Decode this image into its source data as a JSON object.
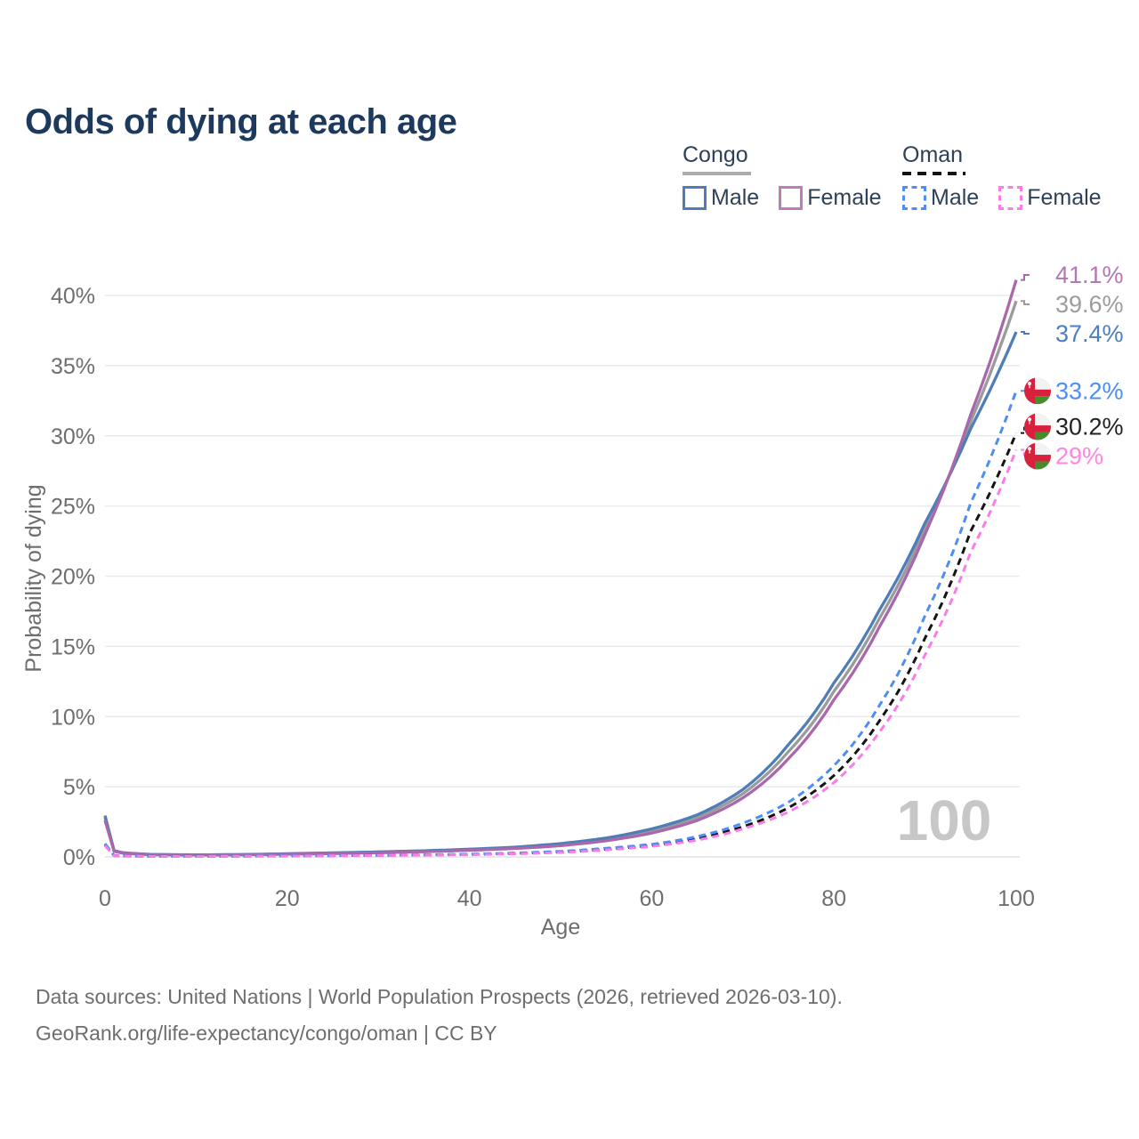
{
  "title": "Odds of dying at each age",
  "legend": {
    "groups": [
      {
        "country": "Congo",
        "line_style": "solid",
        "underline_color": "#ababab",
        "items": [
          {
            "label": "Male",
            "color": "#4f7db8"
          },
          {
            "label": "Female",
            "color": "#bd7cba"
          }
        ]
      },
      {
        "country": "Oman",
        "line_style": "dashed",
        "underline_color": "#141414",
        "items": [
          {
            "label": "Male",
            "color": "#4d8df5"
          },
          {
            "label": "Female",
            "color": "#fb7ce8"
          }
        ]
      }
    ]
  },
  "chart_data": {
    "type": "line",
    "title": "Odds of dying at each age",
    "xlabel": "Age",
    "ylabel": "Probability of dying",
    "x_ticks": [
      0,
      20,
      40,
      60,
      80,
      100
    ],
    "y_ticks": [
      0,
      5,
      10,
      15,
      20,
      25,
      30,
      35,
      40
    ],
    "y_tick_suffix": "%",
    "xlim": [
      0,
      100
    ],
    "ylim": [
      0,
      40
    ],
    "grid": true,
    "legend_position": "top-right",
    "watermark": "100",
    "ages": [
      0,
      1,
      2,
      5,
      10,
      15,
      20,
      25,
      30,
      35,
      40,
      45,
      50,
      55,
      60,
      65,
      70,
      75,
      80,
      85,
      90,
      95,
      100
    ],
    "series": [
      {
        "name": "Congo",
        "country": "Congo",
        "sex": "Both sexes",
        "style": "solid",
        "color": "#9b9b9b",
        "label_color": "#9c9c9c",
        "end_label": "39.6%",
        "flag": "congo-flag",
        "values": [
          2.8,
          0.43,
          0.28,
          0.17,
          0.14,
          0.16,
          0.21,
          0.27,
          0.33,
          0.41,
          0.51,
          0.65,
          0.88,
          1.25,
          1.85,
          2.8,
          4.5,
          7.5,
          11.8,
          17.0,
          23.4,
          31.0,
          39.6
        ]
      },
      {
        "name": "Congo Male",
        "country": "Congo",
        "sex": "Male",
        "style": "solid",
        "color": "#4f7db8",
        "label_color": "#4d7fc0",
        "end_label": "37.4%",
        "flag": "congo-flag",
        "values": [
          2.95,
          0.45,
          0.3,
          0.18,
          0.15,
          0.17,
          0.23,
          0.29,
          0.36,
          0.44,
          0.55,
          0.7,
          0.95,
          1.35,
          2.0,
          3.0,
          4.8,
          8.0,
          12.4,
          17.6,
          23.8,
          30.5,
          37.4
        ]
      },
      {
        "name": "Congo Female",
        "country": "Congo",
        "sex": "Female",
        "style": "solid",
        "color": "#a868ab",
        "label_color": "#b476b4",
        "end_label": "41.1%",
        "flag": "congo-flag",
        "values": [
          2.6,
          0.4,
          0.26,
          0.16,
          0.13,
          0.15,
          0.19,
          0.24,
          0.3,
          0.37,
          0.47,
          0.6,
          0.8,
          1.15,
          1.7,
          2.6,
          4.2,
          7.0,
          11.2,
          16.4,
          23.0,
          31.5,
          41.1
        ]
      },
      {
        "name": "Oman",
        "country": "Oman",
        "sex": "Both sexes",
        "style": "dashed",
        "color": "#141414",
        "label_color": "#222222",
        "end_label": "30.2%",
        "flag": "oman-flag",
        "values": [
          0.88,
          0.09,
          0.065,
          0.045,
          0.045,
          0.055,
          0.07,
          0.09,
          0.11,
          0.14,
          0.18,
          0.25,
          0.36,
          0.55,
          0.82,
          1.32,
          2.15,
          3.5,
          5.8,
          9.7,
          15.6,
          23.2,
          30.2
        ]
      },
      {
        "name": "Oman Male",
        "country": "Oman",
        "sex": "Male",
        "style": "dashed",
        "color": "#4d8df5",
        "label_color": "#4d8df5",
        "end_label": "33.2%",
        "flag": "oman-flag",
        "values": [
          0.95,
          0.1,
          0.07,
          0.05,
          0.05,
          0.06,
          0.08,
          0.1,
          0.12,
          0.15,
          0.2,
          0.28,
          0.4,
          0.62,
          0.9,
          1.45,
          2.4,
          3.9,
          6.5,
          10.8,
          17.2,
          25.2,
          33.2
        ]
      },
      {
        "name": "Oman Female",
        "country": "Oman",
        "sex": "Female",
        "style": "dashed",
        "color": "#fb7ce8",
        "label_color": "#ff85e6",
        "end_label": "29%",
        "flag": "oman-flag",
        "values": [
          0.8,
          0.08,
          0.06,
          0.04,
          0.04,
          0.05,
          0.06,
          0.08,
          0.1,
          0.13,
          0.16,
          0.22,
          0.32,
          0.5,
          0.75,
          1.2,
          2.0,
          3.2,
          5.3,
          8.9,
          14.4,
          21.7,
          29.0
        ]
      }
    ],
    "flag_colors": {
      "congo": {
        "green": "#3aa335",
        "yellow": "#f7d648",
        "red": "#d82e3d"
      },
      "oman": {
        "white": "#f2f2f2",
        "red": "#d8213d",
        "green": "#478c2b"
      }
    }
  },
  "footer": {
    "line1": "Data sources: United Nations | World Population Prospects (2026, retrieved 2026-03-10).",
    "line2": "GeoRank.org/life-expectancy/congo/oman | CC BY"
  }
}
